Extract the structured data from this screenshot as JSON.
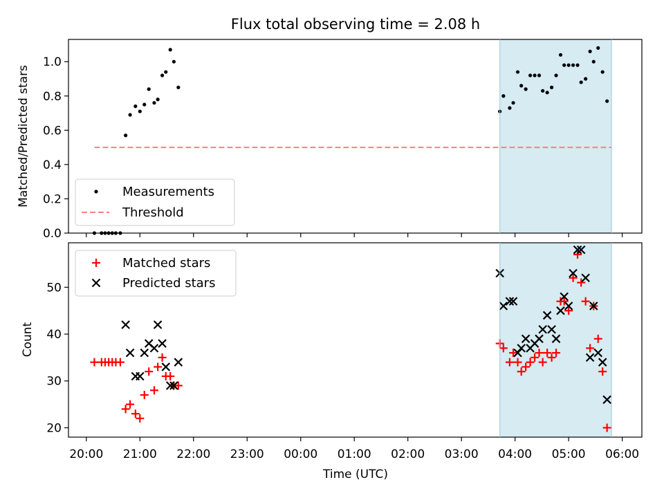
{
  "title": "Flux total observing time = 2.08 h",
  "colors": {
    "shade": "#add8e6",
    "measurements": "#000000",
    "threshold": "#ff7f7f",
    "matched": "#ff0000",
    "predicted": "#000000"
  },
  "chart_data": [
    {
      "type": "scatter",
      "ylabel": "Matched/Predicted stars",
      "ylim": [
        0,
        1.13
      ],
      "y_ticks": [
        0.0,
        0.2,
        0.4,
        0.6,
        0.8,
        1.0
      ],
      "y_tick_labels": [
        "0.0",
        "0.2",
        "0.4",
        "0.6",
        "0.8",
        "1.0"
      ],
      "shaded_region": {
        "x": [
          "03:43",
          "05:48"
        ]
      },
      "legend": {
        "position": "lower-left",
        "entries": [
          "Measurements",
          "Threshold"
        ]
      },
      "series": [
        {
          "name": "Measurements",
          "marker": "dot",
          "points": [
            [
              "20:09",
              0.0
            ],
            [
              "20:17",
              0.0
            ],
            [
              "20:21",
              0.0
            ],
            [
              "20:25",
              0.0
            ],
            [
              "20:29",
              0.0
            ],
            [
              "20:33",
              0.0
            ],
            [
              "20:38",
              0.0
            ],
            [
              "20:44",
              0.57
            ],
            [
              "20:49",
              0.69
            ],
            [
              "20:55",
              0.74
            ],
            [
              "21:00",
              0.71
            ],
            [
              "21:05",
              0.75
            ],
            [
              "21:10",
              0.84
            ],
            [
              "21:16",
              0.76
            ],
            [
              "21:20",
              0.78
            ],
            [
              "21:25",
              0.92
            ],
            [
              "21:29",
              0.94
            ],
            [
              "21:34",
              1.07
            ],
            [
              "21:38",
              1.0
            ],
            [
              "21:43",
              0.85
            ],
            [
              "03:43",
              0.71
            ],
            [
              "03:47",
              0.8
            ],
            [
              "03:54",
              0.73
            ],
            [
              "03:58",
              0.76
            ],
            [
              "04:03",
              0.94
            ],
            [
              "04:07",
              0.86
            ],
            [
              "04:12",
              0.84
            ],
            [
              "04:17",
              0.92
            ],
            [
              "04:22",
              0.92
            ],
            [
              "04:27",
              0.92
            ],
            [
              "04:31",
              0.83
            ],
            [
              "04:36",
              0.82
            ],
            [
              "04:41",
              0.85
            ],
            [
              "04:46",
              0.92
            ],
            [
              "04:51",
              1.04
            ],
            [
              "04:55",
              0.98
            ],
            [
              "05:00",
              0.98
            ],
            [
              "05:05",
              0.98
            ],
            [
              "05:10",
              0.98
            ],
            [
              "05:14",
              0.88
            ],
            [
              "05:19",
              0.9
            ],
            [
              "05:24",
              1.06
            ],
            [
              "05:28",
              1.0
            ],
            [
              "05:33",
              1.08
            ],
            [
              "05:38",
              0.94
            ],
            [
              "05:43",
              0.77
            ]
          ]
        },
        {
          "name": "Threshold",
          "style": "dashed-line",
          "points": [
            [
              "20:09",
              0.5
            ],
            [
              "05:48",
              0.5
            ]
          ]
        }
      ]
    },
    {
      "type": "scatter",
      "xlabel": "Time (UTC)",
      "ylabel": "Count",
      "ylim": [
        18,
        59.5
      ],
      "y_ticks": [
        20,
        30,
        40,
        50
      ],
      "y_tick_labels": [
        "20",
        "30",
        "40",
        "50"
      ],
      "x_ticks": [
        "20:00",
        "21:00",
        "22:00",
        "23:00",
        "00:00",
        "01:00",
        "02:00",
        "03:00",
        "04:00",
        "05:00",
        "06:00"
      ],
      "shaded_region": {
        "x": [
          "03:43",
          "05:48"
        ]
      },
      "legend": {
        "position": "upper-left",
        "entries": [
          "Matched stars",
          "Predicted stars"
        ]
      },
      "series": [
        {
          "name": "Matched stars",
          "marker": "plus",
          "points": [
            [
              "20:09",
              34
            ],
            [
              "20:17",
              34
            ],
            [
              "20:21",
              34
            ],
            [
              "20:25",
              34
            ],
            [
              "20:29",
              34
            ],
            [
              "20:33",
              34
            ],
            [
              "20:38",
              34
            ],
            [
              "20:44",
              24
            ],
            [
              "20:49",
              25
            ],
            [
              "20:55",
              23
            ],
            [
              "21:00",
              22
            ],
            [
              "21:05",
              27
            ],
            [
              "21:10",
              32
            ],
            [
              "21:16",
              28
            ],
            [
              "21:20",
              33
            ],
            [
              "21:25",
              35
            ],
            [
              "21:29",
              31
            ],
            [
              "21:34",
              31
            ],
            [
              "21:38",
              29
            ],
            [
              "21:43",
              29
            ],
            [
              "03:43",
              38
            ],
            [
              "03:47",
              37
            ],
            [
              "03:54",
              34
            ],
            [
              "03:58",
              36
            ],
            [
              "04:03",
              34
            ],
            [
              "04:07",
              32
            ],
            [
              "04:12",
              33
            ],
            [
              "04:17",
              34
            ],
            [
              "04:22",
              35
            ],
            [
              "04:27",
              36
            ],
            [
              "04:31",
              34
            ],
            [
              "04:36",
              36
            ],
            [
              "04:41",
              35
            ],
            [
              "04:46",
              36
            ],
            [
              "04:51",
              47
            ],
            [
              "04:55",
              47
            ],
            [
              "05:00",
              45
            ],
            [
              "05:05",
              52
            ],
            [
              "05:10",
              57
            ],
            [
              "05:14",
              51
            ],
            [
              "05:19",
              47
            ],
            [
              "05:24",
              37
            ],
            [
              "05:28",
              46
            ],
            [
              "05:33",
              39
            ],
            [
              "05:38",
              32
            ],
            [
              "05:43",
              20
            ]
          ]
        },
        {
          "name": "Predicted stars",
          "marker": "x",
          "points": [
            [
              "20:44",
              42
            ],
            [
              "20:49",
              36
            ],
            [
              "20:55",
              31
            ],
            [
              "21:00",
              31
            ],
            [
              "21:05",
              36
            ],
            [
              "21:10",
              38
            ],
            [
              "21:16",
              37
            ],
            [
              "21:20",
              42
            ],
            [
              "21:25",
              38
            ],
            [
              "21:29",
              33
            ],
            [
              "21:34",
              29
            ],
            [
              "21:38",
              29
            ],
            [
              "21:43",
              34
            ],
            [
              "03:43",
              53
            ],
            [
              "03:47",
              46
            ],
            [
              "03:54",
              47
            ],
            [
              "03:58",
              47
            ],
            [
              "04:03",
              36
            ],
            [
              "04:07",
              37
            ],
            [
              "04:12",
              39
            ],
            [
              "04:17",
              37
            ],
            [
              "04:22",
              38
            ],
            [
              "04:27",
              39
            ],
            [
              "04:31",
              41
            ],
            [
              "04:36",
              44
            ],
            [
              "04:41",
              41
            ],
            [
              "04:46",
              39
            ],
            [
              "04:51",
              45
            ],
            [
              "04:55",
              48
            ],
            [
              "05:00",
              46
            ],
            [
              "05:05",
              53
            ],
            [
              "05:10",
              58
            ],
            [
              "05:14",
              58
            ],
            [
              "05:19",
              52
            ],
            [
              "05:24",
              35
            ],
            [
              "05:28",
              46
            ],
            [
              "05:33",
              36
            ],
            [
              "05:38",
              34
            ],
            [
              "05:43",
              26
            ]
          ]
        }
      ]
    }
  ]
}
